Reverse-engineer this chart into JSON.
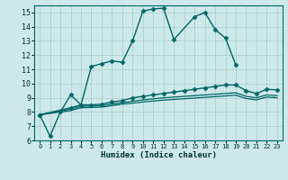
{
  "title": "",
  "xlabel": "Humidex (Indice chaleur)",
  "background_color": "#cce8e8",
  "grid_color": "#aacccc",
  "line_color": "#006666",
  "xlim": [
    -0.5,
    23.5
  ],
  "ylim": [
    6,
    15.5
  ],
  "xticks": [
    0,
    1,
    2,
    3,
    4,
    5,
    6,
    7,
    8,
    9,
    10,
    11,
    12,
    13,
    14,
    15,
    16,
    17,
    18,
    19,
    20,
    21,
    22,
    23
  ],
  "yticks": [
    6,
    7,
    8,
    9,
    10,
    11,
    12,
    13,
    14,
    15
  ],
  "series": [
    {
      "x": [
        0,
        1,
        2,
        3,
        4,
        5,
        6,
        7,
        8,
        9,
        10,
        11,
        12,
        13,
        15,
        16,
        17,
        18,
        19
      ],
      "y": [
        7.8,
        6.3,
        8.0,
        9.2,
        8.5,
        11.2,
        11.4,
        11.6,
        11.5,
        13.0,
        15.1,
        15.25,
        15.3,
        13.1,
        14.7,
        15.0,
        13.8,
        13.2,
        11.3
      ],
      "marker": "D",
      "markersize": 2.5,
      "linewidth": 1.0,
      "connected": false
    },
    {
      "x": [
        0,
        3,
        4,
        5,
        6,
        7,
        8,
        9,
        10,
        11,
        12,
        13,
        14,
        15,
        16,
        17,
        18,
        19,
        20,
        21,
        22,
        23
      ],
      "y": [
        7.8,
        8.3,
        8.5,
        8.5,
        8.55,
        8.7,
        8.8,
        9.0,
        9.1,
        9.2,
        9.3,
        9.4,
        9.5,
        9.6,
        9.7,
        9.8,
        9.9,
        9.9,
        9.5,
        9.3,
        9.6,
        9.55
      ],
      "marker": "D",
      "markersize": 2.5,
      "linewidth": 1.0,
      "connected": true
    },
    {
      "x": [
        0,
        3,
        4,
        5,
        6,
        7,
        8,
        9,
        10,
        11,
        12,
        13,
        14,
        15,
        16,
        17,
        18,
        19,
        20,
        21,
        22,
        23
      ],
      "y": [
        7.8,
        8.2,
        8.4,
        8.42,
        8.44,
        8.55,
        8.65,
        8.75,
        8.85,
        8.92,
        9.0,
        9.05,
        9.1,
        9.15,
        9.2,
        9.25,
        9.3,
        9.35,
        9.1,
        9.0,
        9.2,
        9.15
      ],
      "marker": null,
      "markersize": 0,
      "linewidth": 0.9,
      "connected": true
    },
    {
      "x": [
        0,
        3,
        4,
        5,
        6,
        7,
        8,
        9,
        10,
        11,
        12,
        13,
        14,
        15,
        16,
        17,
        18,
        19,
        20,
        21,
        22,
        23
      ],
      "y": [
        7.8,
        8.1,
        8.3,
        8.32,
        8.34,
        8.45,
        8.55,
        8.62,
        8.7,
        8.77,
        8.83,
        8.88,
        8.93,
        8.98,
        9.03,
        9.08,
        9.13,
        9.18,
        8.95,
        8.85,
        9.05,
        9.0
      ],
      "marker": null,
      "markersize": 0,
      "linewidth": 0.9,
      "connected": true
    }
  ]
}
